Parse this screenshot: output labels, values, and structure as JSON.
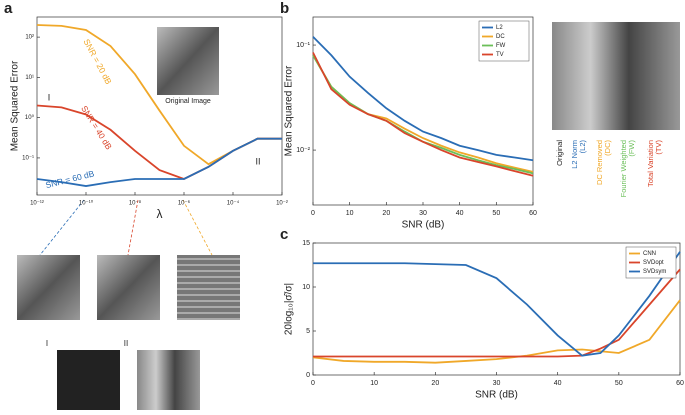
{
  "chart_data": [
    {
      "type": "line",
      "panel": "a",
      "xlabel": "λ",
      "ylabel": "Mean Squared Error",
      "xlog": true,
      "ylog": true,
      "xlim": [
        1e-12,
        0.01
      ],
      "ylim": [
        0.012,
        316
      ],
      "xticks": [
        {
          "value": 1e-12,
          "label": "10⁻¹²"
        },
        {
          "value": 1e-10,
          "label": "10⁻¹⁰"
        },
        {
          "value": 1e-08,
          "label": "10⁻⁸"
        },
        {
          "value": 1e-06,
          "label": "10⁻⁶"
        },
        {
          "value": 0.0001,
          "label": "10⁻⁴"
        },
        {
          "value": 0.01,
          "label": "10⁻²"
        }
      ],
      "yticks": [
        {
          "value": 0.1,
          "label": "10⁻¹"
        },
        {
          "value": 1,
          "label": "10⁰"
        },
        {
          "value": 10,
          "label": "10¹"
        },
        {
          "value": 100,
          "label": "10²"
        }
      ],
      "x": [
        1e-12,
        1e-11,
        1e-10,
        1e-09,
        1e-08,
        1e-07,
        1e-06,
        1e-05,
        0.0001,
        0.001,
        0.01
      ],
      "series": [
        {
          "name": "SNR = 20 dB",
          "color": "#f0a829",
          "values": [
            200,
            190,
            150,
            60,
            12,
            1.5,
            0.2,
            0.07,
            0.15,
            0.3,
            0.3
          ]
        },
        {
          "name": "SNR = 40 dB",
          "color": "#d9452b",
          "values": [
            2,
            1.8,
            1.2,
            0.5,
            0.15,
            0.05,
            0.03,
            0.06,
            0.15,
            0.3,
            0.3
          ]
        },
        {
          "name": "SNR = 60 dB",
          "color": "#2a6db5",
          "values": [
            0.03,
            0.025,
            0.02,
            0.025,
            0.03,
            0.03,
            0.03,
            0.06,
            0.15,
            0.3,
            0.3
          ]
        }
      ],
      "annotations": [
        "Original Image",
        "I",
        "II",
        "I",
        "II"
      ]
    },
    {
      "type": "line",
      "panel": "b",
      "xlabel": "SNR (dB)",
      "ylabel": "Mean Squared Error",
      "ylog": true,
      "xlim": [
        0,
        60
      ],
      "ylim": [
        0.003,
        0.185
      ],
      "xticks": [
        0,
        10,
        20,
        30,
        40,
        50,
        60
      ],
      "yticks": [
        {
          "value": 0.01,
          "label": "10⁻²"
        },
        {
          "value": 0.1,
          "label": "10⁻¹"
        }
      ],
      "legend": "upper right",
      "x": [
        0,
        5,
        10,
        15,
        20,
        25,
        30,
        35,
        40,
        45,
        50,
        55,
        60
      ],
      "series": [
        {
          "name": "L2",
          "color": "#2a6db5",
          "values": [
            0.12,
            0.08,
            0.05,
            0.035,
            0.025,
            0.019,
            0.015,
            0.013,
            0.011,
            0.01,
            0.009,
            0.0085,
            0.008
          ]
        },
        {
          "name": "DC",
          "color": "#f0a829",
          "values": [
            0.08,
            0.04,
            0.028,
            0.022,
            0.02,
            0.016,
            0.013,
            0.011,
            0.0095,
            0.0085,
            0.0075,
            0.0068,
            0.0062
          ]
        },
        {
          "name": "FW",
          "color": "#6bbf59",
          "values": [
            0.08,
            0.04,
            0.028,
            0.022,
            0.019,
            0.015,
            0.012,
            0.0105,
            0.009,
            0.008,
            0.0072,
            0.0066,
            0.006
          ]
        },
        {
          "name": "TV",
          "color": "#d9452b",
          "values": [
            0.085,
            0.038,
            0.027,
            0.022,
            0.019,
            0.0145,
            0.012,
            0.01,
            0.0085,
            0.0077,
            0.007,
            0.0063,
            0.0057
          ]
        }
      ],
      "image_labels": [
        {
          "text": "Original",
          "color": "#222222"
        },
        {
          "text": "L2 Norm",
          "color": "#2a6db5"
        },
        {
          "text": "(L2)",
          "color": "#2a6db5"
        },
        {
          "text": "DC Removed",
          "color": "#f0a829"
        },
        {
          "text": "(DC)",
          "color": "#f0a829"
        },
        {
          "text": "Fourier Weighted",
          "color": "#6bbf59"
        },
        {
          "text": "(FW)",
          "color": "#6bbf59"
        },
        {
          "text": "Total Variation",
          "color": "#d9452b"
        },
        {
          "text": "(TV)",
          "color": "#d9452b"
        }
      ]
    },
    {
      "type": "line",
      "panel": "c",
      "xlabel": "SNR (dB)",
      "ylabel": "20log₁₀|σ̂/σ|",
      "xlim": [
        0,
        60
      ],
      "ylim": [
        0,
        15
      ],
      "xticks": [
        0,
        10,
        20,
        30,
        40,
        50,
        60
      ],
      "yticks": [
        0,
        5,
        10,
        15
      ],
      "legend": "upper right",
      "x": [
        0,
        5,
        10,
        15,
        20,
        25,
        30,
        35,
        40,
        44,
        47,
        50,
        55,
        60
      ],
      "series": [
        {
          "name": "CNN",
          "color": "#f0a829",
          "values": [
            2,
            1.6,
            1.5,
            1.5,
            1.4,
            1.6,
            1.8,
            2.2,
            2.8,
            2.9,
            2.7,
            2.5,
            4,
            8.5
          ]
        },
        {
          "name": "SVDopt",
          "color": "#d9452b",
          "values": [
            2.1,
            2.1,
            2.1,
            2.1,
            2.1,
            2.1,
            2.1,
            2.1,
            2.1,
            2.2,
            3,
            4,
            8,
            12
          ]
        },
        {
          "name": "SVDsym",
          "color": "#2a6db5",
          "values": [
            12.7,
            12.7,
            12.7,
            12.7,
            12.6,
            12.5,
            11,
            8,
            4.5,
            2.2,
            2.5,
            4.5,
            9,
            14
          ]
        }
      ]
    }
  ]
}
